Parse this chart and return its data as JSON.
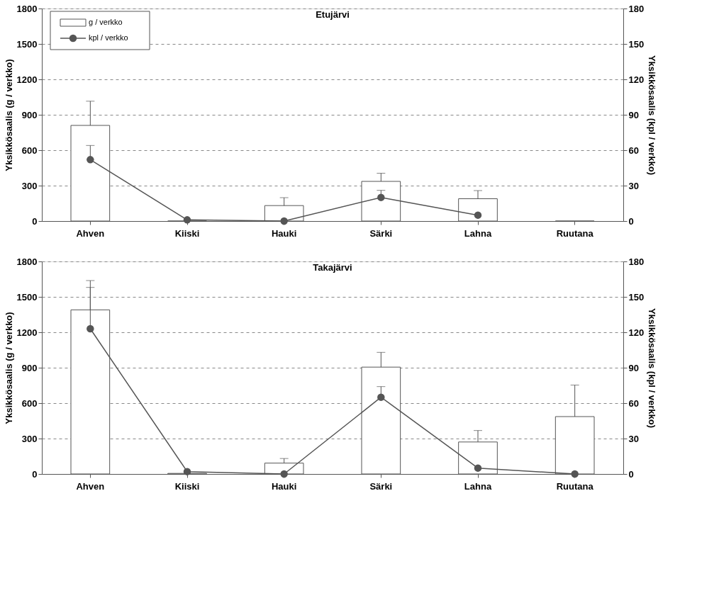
{
  "chart_data": [
    {
      "type": "bar",
      "title": "Etujärvi",
      "categories": [
        "Ahven",
        "Kiiski",
        "Hauki",
        "Särki",
        "Lahna",
        "Ruutana"
      ],
      "ylabel": "Yksikkösaalis (g / verkko)",
      "y2label": "Yksikkösaalis (kpl / verkko)",
      "ylim": [
        0,
        1800
      ],
      "yticks": [
        0,
        300,
        600,
        900,
        1200,
        1500,
        1800
      ],
      "y2lim": [
        0,
        180
      ],
      "y2ticks": [
        0,
        30,
        60,
        90,
        120,
        150,
        180
      ],
      "grid": "y",
      "legend": "top left",
      "marker": "circle",
      "series": [
        {
          "name": "g / verkko",
          "type": "bar",
          "color": "#ffffff",
          "values": [
            810,
            0,
            131,
            336,
            189,
            0
          ],
          "errors": [
            [
              810,
              1015
            ],
            null,
            [
              131,
              198
            ],
            [
              336,
              405
            ],
            [
              189,
              258
            ],
            null
          ]
        },
        {
          "name": "kpl / verkko",
          "type": "line",
          "axis": "y2",
          "color": "#555555",
          "values": [
            52,
            1,
            0,
            20,
            5,
            null
          ],
          "errors": [
            [
              52,
              64
            ],
            null,
            null,
            [
              20,
              26
            ],
            null,
            null
          ]
        }
      ]
    },
    {
      "type": "bar",
      "title": "Takajärvi",
      "categories": [
        "Ahven",
        "Kiiski",
        "Hauki",
        "Särki",
        "Lahna",
        "Ruutana"
      ],
      "ylabel": "Yksikkösaalis (g / verkko)",
      "y2label": "Yksikkösaalis (kpl / verkko)",
      "ylim": [
        0,
        1800
      ],
      "yticks": [
        0,
        300,
        600,
        900,
        1200,
        1500,
        1800
      ],
      "y2lim": [
        0,
        180
      ],
      "y2ticks": [
        0,
        30,
        60,
        90,
        120,
        150,
        180
      ],
      "grid": "y",
      "marker": "circle",
      "series": [
        {
          "type": "bar",
          "color": "#ffffff",
          "values": [
            1390,
            5,
            92,
            905,
            271,
            486
          ],
          "errors": [
            [
              1390,
              1638
            ],
            null,
            [
              92,
              131
            ],
            [
              905,
              1030
            ],
            [
              271,
              368
            ],
            [
              486,
              753
            ]
          ]
        },
        {
          "type": "line",
          "axis": "y2",
          "color": "#555555",
          "values": [
            123,
            2,
            0,
            65,
            5,
            0
          ],
          "errors": [
            [
              123,
              158
            ],
            null,
            null,
            [
              65,
              74
            ],
            null,
            null
          ]
        }
      ]
    }
  ]
}
